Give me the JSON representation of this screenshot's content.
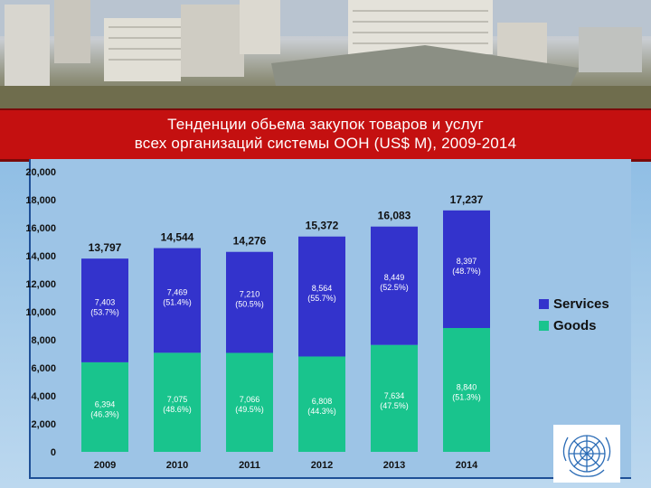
{
  "title": {
    "line1": "Тенденции обьема закупок товаров и услуг",
    "line2": "всех организаций системы ООН (US$ M), 2009-2014"
  },
  "colors": {
    "services": "#3333cc",
    "goods": "#19c48d",
    "title_band": "#c41010"
  },
  "icons": {
    "logo": "un-emblem-icon",
    "photo": "building-photo"
  },
  "chart_data": {
    "type": "bar",
    "stacked": true,
    "categories": [
      "2009",
      "2010",
      "2011",
      "2012",
      "2013",
      "2014"
    ],
    "series": [
      {
        "name": "Goods",
        "values": [
          6394,
          7075,
          7066,
          6808,
          7634,
          8840
        ],
        "labels": [
          "6,394\n(46.3%)",
          "7,075\n(48.6%)",
          "7,066\n(49.5%)",
          "6,808\n(44.3%)",
          "7,634\n(47.5%)",
          "8,840\n(51.3%)"
        ]
      },
      {
        "name": "Services",
        "values": [
          7403,
          7469,
          7210,
          8564,
          8449,
          8397
        ],
        "labels": [
          "7,403\n(53.7%)",
          "7,469\n(51.4%)",
          "7,210\n(50.5%)",
          "8,564\n(55.7%)",
          "8,449\n(52.5%)",
          "8,397\n(48.7%)"
        ]
      }
    ],
    "totals": [
      "13,797",
      "14,544",
      "14,276",
      "15,372",
      "16,083",
      "17,237"
    ],
    "ylim": [
      0,
      20000
    ],
    "yticks": [
      "0",
      "2,000",
      "4,000",
      "6,000",
      "8,000",
      "10,000",
      "12,000",
      "14,000",
      "16,000",
      "18,000",
      "20,000"
    ],
    "legend": {
      "position": "right",
      "items": [
        "Services",
        "Goods"
      ]
    },
    "grid": false
  }
}
